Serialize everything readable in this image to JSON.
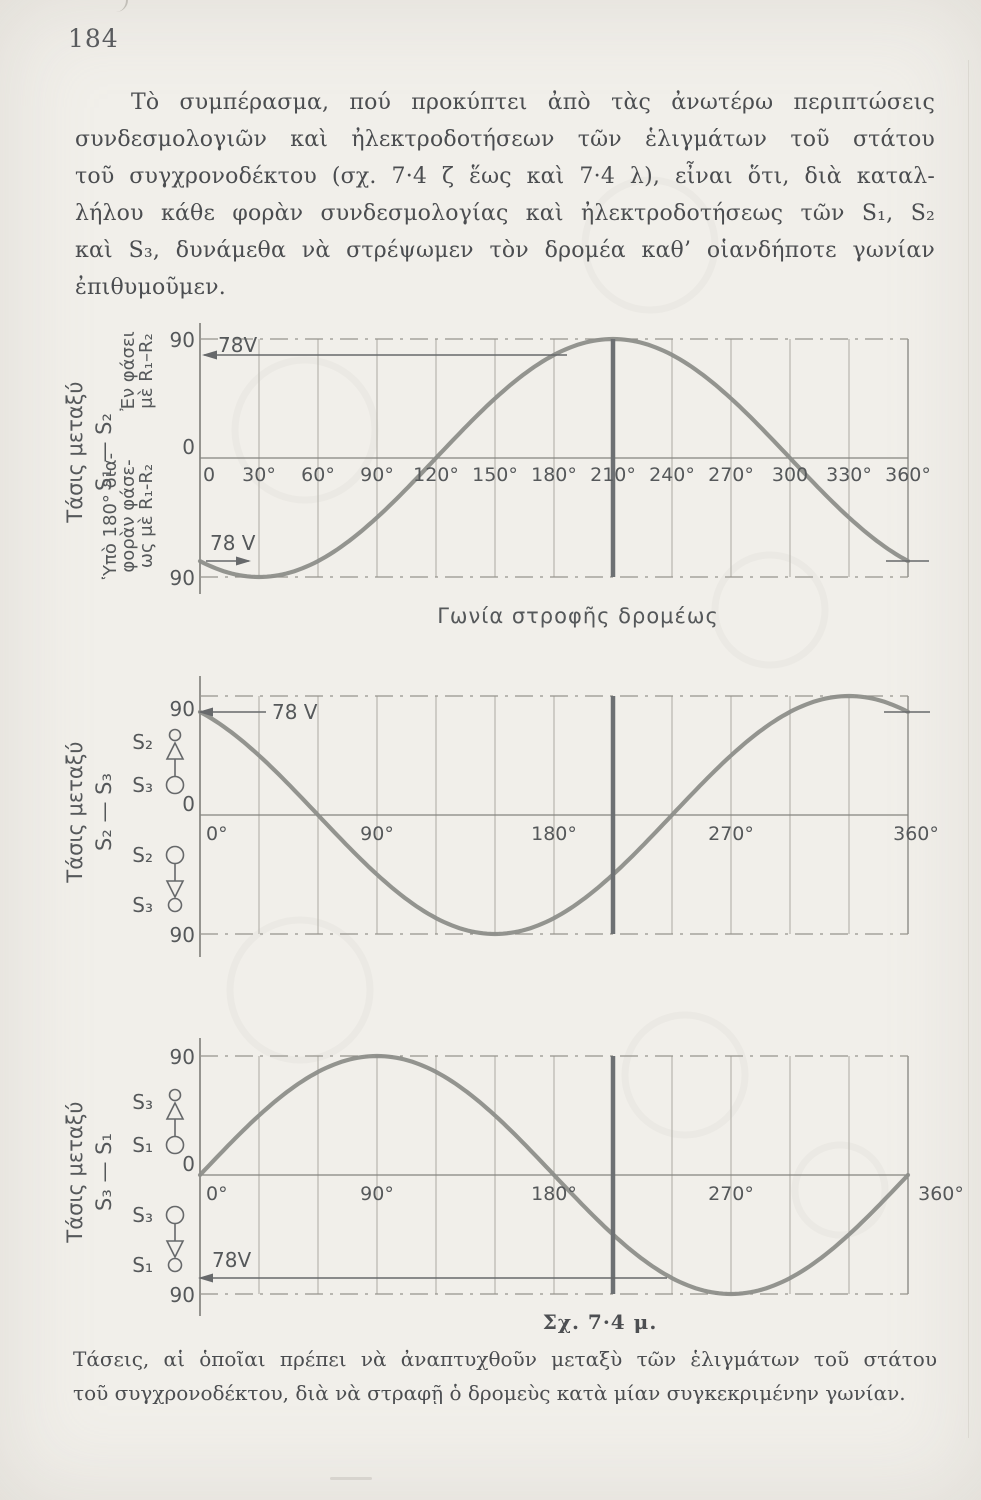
{
  "page_number": "184",
  "paragraph": {
    "lines": [
      "Τὸ συμπέρασμα, πού προκύπτει ἀπὸ τὰς ἀνωτέρω περιπτώσεις",
      "συνδεσμολογιῶν καὶ ἠλεκτροδοτήσεων τῶν ἑλιγμάτων τοῦ στάτου",
      "τοῦ συγχρονοδέκτου (σχ. 7·4 ζ ἕως καὶ 7·4 λ), εἶναι ὅτι, διὰ καταλ-",
      "λήλου κάθε φορὰν συνδεσμολογίας καὶ ἠλεκτροδοτήσεως τῶν S₁, S₂",
      "καὶ S₃, δυνάμεθα νὰ στρέψωμεν τὸν δρομέα καθ’ οἱανδήποτε γωνίαν",
      "ἐπιθυμοῦμεν."
    ]
  },
  "figure_caption": {
    "title": "Σχ. 7·4 μ.",
    "lines": [
      "Τάσεις, αἱ ὁποῖαι πρέπει νὰ ἀναπτυχθοῦν μεταξὺ τῶν ἑλιγμάτων τοῦ στάτου",
      "τοῦ συγχρονοδέκτου, διὰ νὰ στραφῇ ὁ δρομεὺς κατὰ μίαν συγκεκριμένην γωνίαν."
    ]
  },
  "charts": [
    {
      "name": "voltage-s1-s2",
      "ylabel": [
        "Τάσις μεταξύ",
        "S₁ — S₂"
      ],
      "upper_note": [
        "Ἐν φάσει",
        "μὲ R₁–R₂"
      ],
      "lower_note": [
        "Ὑπὸ 180° δια-",
        "φορὰν φάσε-",
        "ως μὲ R₁-R₂"
      ],
      "yticks": [
        "90",
        "0",
        "90"
      ],
      "xtick_degs": [
        0,
        30,
        60,
        90,
        120,
        150,
        180,
        210,
        240,
        270,
        300,
        330,
        360
      ],
      "xtick_labels": [
        "0",
        "30°",
        "60°",
        "90°",
        "120°",
        "150°",
        "180°",
        "210°",
        "240°",
        "270°",
        "300",
        "330°",
        "360°"
      ],
      "xlabel": "Γωνία στροφῆς δρομέως",
      "curve": {
        "amplitude_V": 90,
        "phase_deg": 150,
        "formula": "V = 90·cos(θ+150°)"
      },
      "marker_deg": 210,
      "annotations": [
        {
          "label": "78V",
          "value_V": 78
        },
        {
          "label": "78 V",
          "value_V": -78
        }
      ]
    },
    {
      "name": "voltage-s2-s3",
      "ylabel": [
        "Τάσις μεταξύ",
        "S₂ — S₃"
      ],
      "terminals_upper": {
        "top": "S₂",
        "bottom": "S₃",
        "arrow": "up"
      },
      "terminals_lower": {
        "top": "S₂",
        "bottom": "S₃",
        "arrow": "down"
      },
      "yticks": [
        "90",
        "0",
        "90"
      ],
      "xtick_degs": [
        0,
        90,
        180,
        270,
        360
      ],
      "xtick_labels": [
        "0°",
        "90°",
        "180°",
        "270°",
        "360°"
      ],
      "curve": {
        "amplitude_V": 90,
        "phase_deg": 30,
        "formula": "V = 90·cos(θ+30°)"
      },
      "marker_deg": 210,
      "annotations": [
        {
          "label": "78 V",
          "value_V": 78
        }
      ]
    },
    {
      "name": "voltage-s3-s1",
      "ylabel": [
        "Τάσις μεταξύ",
        "S₃ — S₁"
      ],
      "terminals_upper": {
        "top": "S₃",
        "bottom": "S₁",
        "arrow": "up"
      },
      "terminals_lower": {
        "top": "S₃",
        "bottom": "S₁",
        "arrow": "down"
      },
      "yticks": [
        "90",
        "0",
        "90"
      ],
      "xtick_degs": [
        0,
        90,
        180,
        270,
        360
      ],
      "xtick_labels": [
        "0°",
        "90°",
        "180°",
        "270°",
        "360°"
      ],
      "curve": {
        "amplitude_V": 90,
        "phase_deg": -90,
        "formula": "V = 90·sin(θ)"
      },
      "marker_deg": 210,
      "annotations": [
        {
          "label": "78V",
          "value_V": -78
        }
      ]
    }
  ],
  "chart_data": [
    {
      "type": "line",
      "title": "Τάσις μεταξύ S₁ — S₂",
      "xlabel": "Γωνία στροφῆς δρομέως",
      "x_deg": [
        0,
        30,
        60,
        90,
        120,
        150,
        180,
        210,
        240,
        270,
        300,
        330,
        360
      ],
      "values_V": [
        -78,
        -90,
        -78,
        -45,
        0,
        45,
        78,
        90,
        78,
        45,
        0,
        -45,
        -78
      ],
      "ylim": [
        -90,
        90
      ],
      "marker_deg": 210,
      "grid_step_deg": 30,
      "annotations": [
        "78V at +78",
        "78 V at -78 (0°)"
      ]
    },
    {
      "type": "line",
      "title": "Τάσις μεταξύ S₂ — S₃",
      "x_deg": [
        0,
        30,
        60,
        90,
        120,
        150,
        180,
        210,
        240,
        270,
        300,
        330,
        360
      ],
      "values_V": [
        78,
        45,
        0,
        -45,
        -78,
        -90,
        -78,
        -45,
        0,
        45,
        78,
        90,
        78
      ],
      "ylim": [
        -90,
        90
      ],
      "marker_deg": 210,
      "grid_step_deg": 30,
      "annotations": [
        "78 V at +78 (0°)"
      ]
    },
    {
      "type": "line",
      "title": "Τάσις μεταξύ S₃ — S₁",
      "x_deg": [
        0,
        30,
        60,
        90,
        120,
        150,
        180,
        210,
        240,
        270,
        300,
        330,
        360
      ],
      "values_V": [
        0,
        45,
        78,
        90,
        78,
        45,
        0,
        -45,
        -78,
        -90,
        -78,
        -45,
        0
      ],
      "ylim": [
        -90,
        90
      ],
      "marker_deg": 210,
      "grid_step_deg": 30,
      "annotations": [
        "78V at -78 (240°)"
      ]
    }
  ]
}
